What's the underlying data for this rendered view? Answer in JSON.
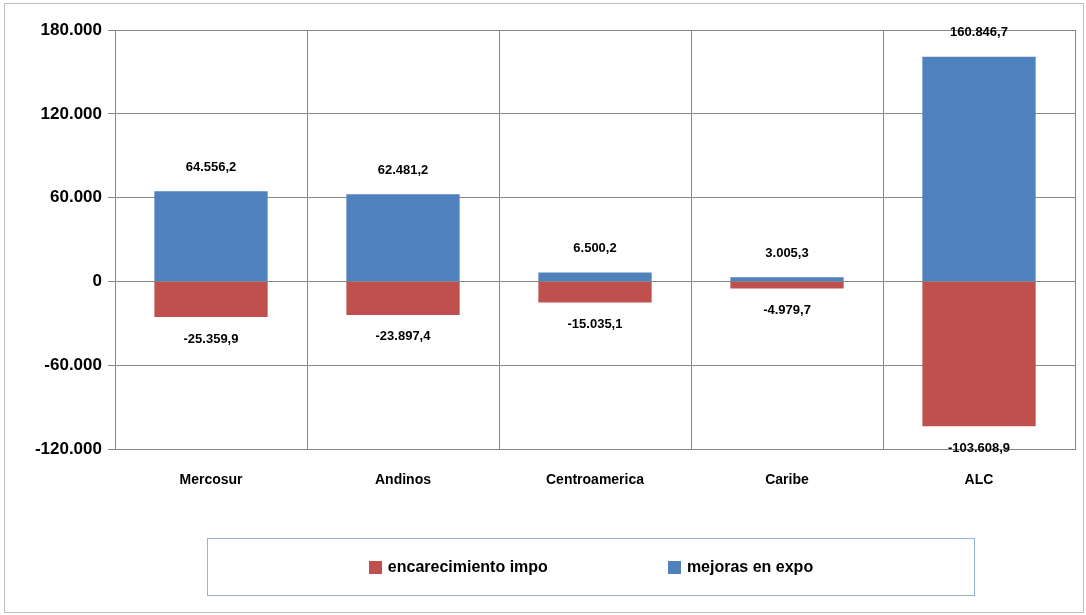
{
  "chart_data": {
    "type": "bar",
    "stacked": true,
    "categories": [
      "Mercosur",
      "Andinos",
      "Centroamerica",
      "Caribe",
      "ALC"
    ],
    "series": [
      {
        "name": "encarecimiento impo",
        "color": "#c0504d",
        "values": [
          -25359.9,
          -23897.4,
          -15035.1,
          -4979.7,
          -103608.9
        ],
        "value_labels": [
          "-25.359,9",
          "-23.897,4",
          "-15.035,1",
          "-4.979,7",
          "-103.608,9"
        ]
      },
      {
        "name": "mejoras en expo",
        "color": "#4f81bd",
        "values": [
          64556.2,
          62481.2,
          6500.2,
          3005.3,
          160846.7
        ],
        "value_labels": [
          "64.556,2",
          "62.481,2",
          "6.500,2",
          "3.005,3",
          "160.846,7"
        ]
      }
    ],
    "ylim": [
      -120000,
      180000
    ],
    "yticks": [
      {
        "value": -120000,
        "label": "-120.000"
      },
      {
        "value": -60000,
        "label": "-60.000"
      },
      0,
      {
        "value": 60000,
        "label": "60.000"
      },
      {
        "value": 120000,
        "label": "120.000"
      },
      {
        "value": 180000,
        "label": "180.000"
      }
    ],
    "grid": true,
    "legend": "bottom"
  }
}
